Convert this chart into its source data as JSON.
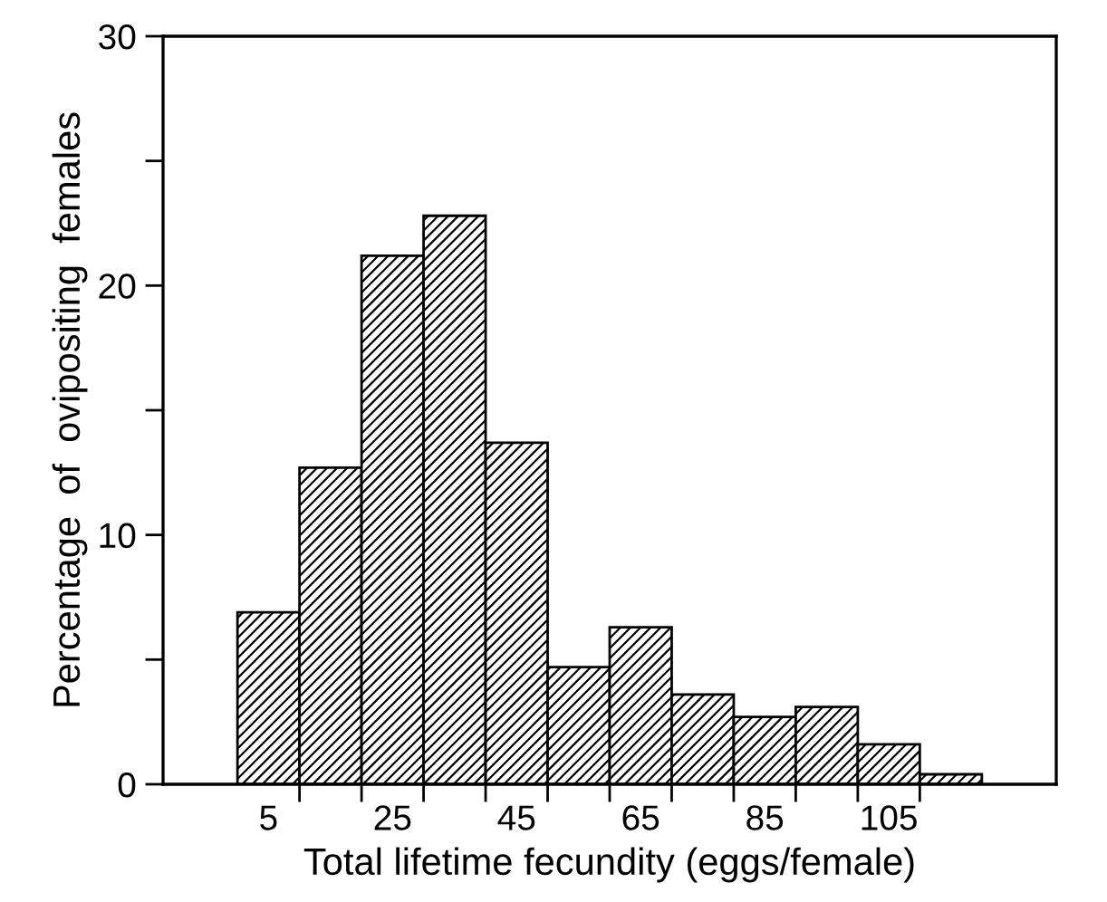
{
  "chart_data": {
    "type": "histogram",
    "xlabel": "Total lifetime fecundity (eggs/female)",
    "ylabel": "Percentage  of  ovipositing  females",
    "bins": [
      0,
      10,
      20,
      30,
      40,
      50,
      60,
      70,
      80,
      90,
      100,
      110,
      120
    ],
    "values": [
      6.9,
      12.7,
      21.2,
      22.8,
      13.7,
      4.7,
      6.3,
      3.6,
      2.7,
      3.1,
      1.6,
      0.4
    ],
    "color": "#000000",
    "xlim": [
      -12,
      132
    ],
    "xticks": [
      {
        "value": 5,
        "label": "5"
      },
      {
        "value": 10,
        "label": null
      },
      {
        "value": 20,
        "label": null
      },
      {
        "value": 25,
        "label": "25"
      },
      {
        "value": 30,
        "label": null
      },
      {
        "value": 40,
        "label": null
      },
      {
        "value": 45,
        "label": "45"
      },
      {
        "value": 50,
        "label": null
      },
      {
        "value": 60,
        "label": null
      },
      {
        "value": 65,
        "label": "65"
      },
      {
        "value": 70,
        "label": null
      },
      {
        "value": 80,
        "label": null
      },
      {
        "value": 85,
        "label": "85"
      },
      {
        "value": 90,
        "label": null
      },
      {
        "value": 100,
        "label": null
      },
      {
        "value": 105,
        "label": "105"
      },
      {
        "value": 110,
        "label": null
      }
    ],
    "ylim": [
      0,
      30
    ],
    "yticks": [
      0,
      {
        "value": 5,
        "label": null
      },
      10,
      {
        "value": 15,
        "label": null
      },
      20,
      {
        "value": 25,
        "label": null
      },
      30
    ],
    "grid": false
  }
}
